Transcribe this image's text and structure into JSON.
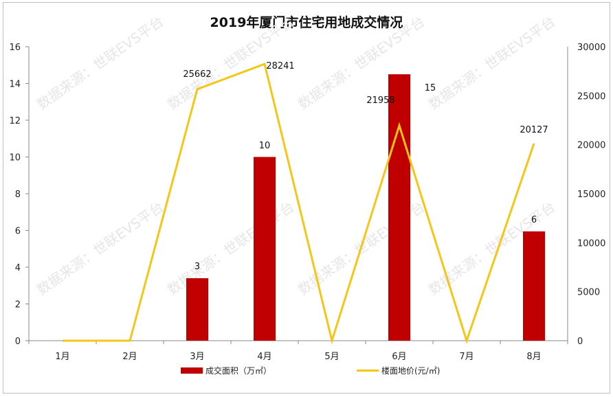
{
  "chart_data": {
    "type": "bar+line",
    "title": "2019年厦门市住宅用地成交情况",
    "categories": [
      "1月",
      "2月",
      "3月",
      "4月",
      "5月",
      "6月",
      "7月",
      "8月"
    ],
    "series": [
      {
        "name": "成交面积（万㎡）",
        "type": "bar",
        "axis": "left",
        "color": "#C00000",
        "values": [
          0,
          0,
          3.4,
          10,
          0,
          14.5,
          0,
          5.95
        ],
        "labels": [
          "",
          "",
          "3",
          "10",
          "",
          "15",
          "",
          "6"
        ]
      },
      {
        "name": "楼面地价(元/㎡)",
        "type": "line",
        "axis": "right",
        "color": "#F5C518",
        "values": [
          0,
          0,
          25662,
          28241,
          0,
          21958,
          0,
          20127
        ],
        "labels": [
          "",
          "",
          "25662",
          "28241",
          "",
          "21958",
          "",
          "20127"
        ]
      }
    ],
    "left_axis": {
      "ticks": [
        "0",
        "2",
        "4",
        "6",
        "8",
        "10",
        "12",
        "14",
        "16"
      ],
      "ylim": [
        0,
        16
      ]
    },
    "right_axis": {
      "ticks": [
        "0",
        "5000",
        "10000",
        "15000",
        "20000",
        "25000",
        "30000"
      ],
      "ylim": [
        0,
        30000
      ]
    },
    "legend_position": "bottom",
    "grid": false,
    "watermark": "数据来源：世联EVS平台"
  },
  "legend": {
    "bar_label": "成交面积（万㎡）",
    "line_label": "楼面地价(元/㎡)"
  }
}
